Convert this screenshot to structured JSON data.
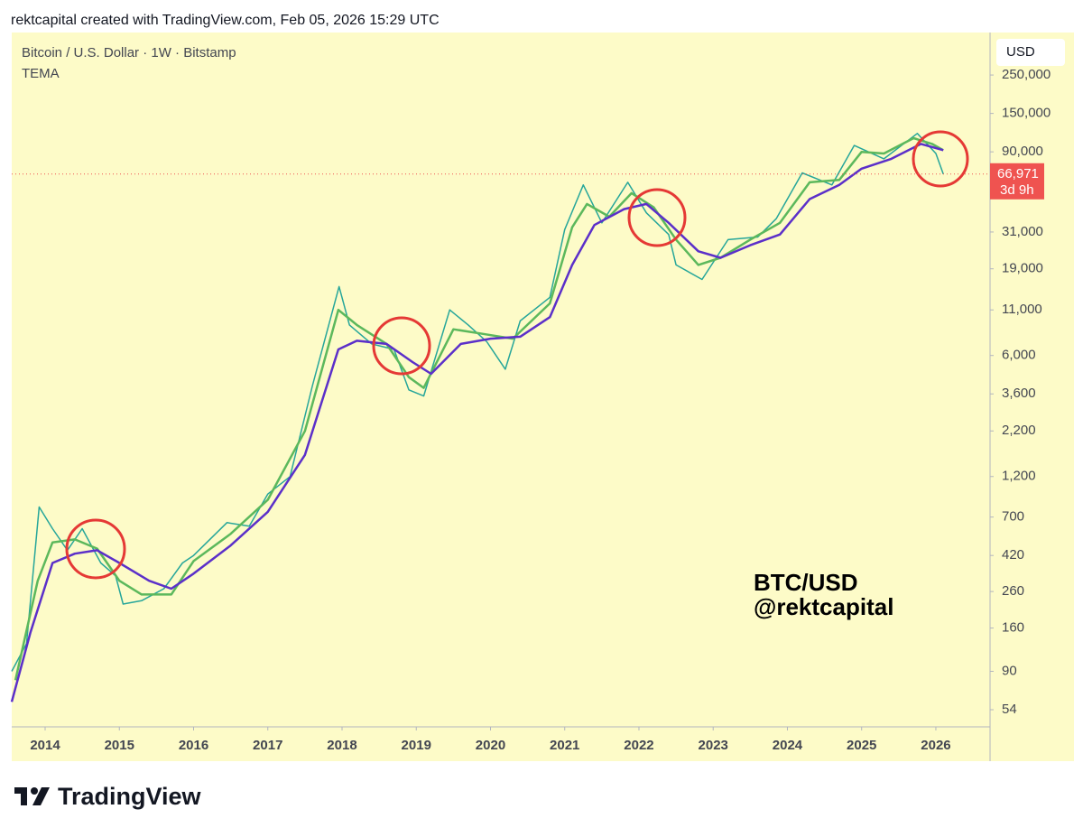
{
  "header": "rektcapital created with TradingView.com, Feb 05, 2026 15:29 UTC",
  "footer_logo": "TradingView",
  "chart_data": {
    "type": "line",
    "title": "Bitcoin / U.S. Dollar · 1W · Bitstamp",
    "indicator": "TEMA",
    "currency": "USD",
    "watermark": [
      "BTC/USD",
      "@rektcapital"
    ],
    "log_scale": true,
    "xlim": [
      2013.55,
      2026.73
    ],
    "xticks": [
      2014,
      2015,
      2016,
      2017,
      2018,
      2019,
      2020,
      2021,
      2022,
      2023,
      2024,
      2025,
      2026
    ],
    "ylim": [
      43,
      440000
    ],
    "yticks": [
      54,
      90,
      160,
      260,
      420,
      700,
      {
        "value": 1200,
        "label": "1,200"
      },
      {
        "value": 2200,
        "label": "2,200"
      },
      {
        "value": 3600,
        "label": "3,600"
      },
      {
        "value": 6000,
        "label": "6,000"
      },
      {
        "value": 11000,
        "label": "11,000"
      },
      {
        "value": 19000,
        "label": "19,000"
      },
      {
        "value": 31000,
        "label": "31,000"
      },
      {
        "value": 90000,
        "label": "90,000"
      },
      {
        "value": 150000,
        "label": "150,000"
      },
      {
        "value": 250000,
        "label": "250,000"
      }
    ],
    "last_price": {
      "value": 66971,
      "label": "66,971"
    },
    "countdown": "3d 9h",
    "series": [
      {
        "color": "#26a69a",
        "x": [
          2013.55,
          2013.75,
          2013.92,
          2014.1,
          2014.3,
          2014.5,
          2014.75,
          2014.95,
          2015.05,
          2015.3,
          2015.6,
          2015.85,
          2016.0,
          2016.45,
          2016.75,
          2017.0,
          2017.3,
          2017.6,
          2017.96,
          2018.1,
          2018.4,
          2018.7,
          2018.9,
          2019.1,
          2019.45,
          2019.7,
          2019.95,
          2020.2,
          2020.4,
          2020.8,
          2021.0,
          2021.25,
          2021.5,
          2021.85,
          2022.1,
          2022.4,
          2022.5,
          2022.85,
          2023.2,
          2023.6,
          2023.85,
          2024.2,
          2024.6,
          2024.9,
          2025.3,
          2025.75,
          2026.0,
          2026.1
        ],
        "values": [
          90,
          130,
          800,
          600,
          450,
          600,
          380,
          320,
          220,
          230,
          270,
          380,
          420,
          650,
          620,
          950,
          1200,
          4000,
          15000,
          9000,
          7000,
          6500,
          3800,
          3500,
          11000,
          9000,
          7200,
          5000,
          9500,
          13000,
          32000,
          58000,
          35000,
          60000,
          40000,
          30000,
          20000,
          16500,
          28000,
          29000,
          37000,
          68000,
          58000,
          98000,
          82000,
          115000,
          88000,
          66971
        ]
      },
      {
        "color": "#5cb85c",
        "x": [
          2013.6,
          2013.9,
          2014.1,
          2014.4,
          2014.7,
          2015.0,
          2015.3,
          2015.7,
          2016.0,
          2016.5,
          2017.0,
          2017.5,
          2017.95,
          2018.2,
          2018.6,
          2018.9,
          2019.1,
          2019.5,
          2019.9,
          2020.3,
          2020.8,
          2021.1,
          2021.3,
          2021.6,
          2021.9,
          2022.2,
          2022.5,
          2022.8,
          2023.1,
          2023.5,
          2023.9,
          2024.3,
          2024.7,
          2025.0,
          2025.3,
          2025.7,
          2025.95,
          2026.1
        ],
        "values": [
          80,
          300,
          500,
          520,
          460,
          300,
          250,
          250,
          390,
          560,
          880,
          2200,
          11000,
          9000,
          7000,
          4500,
          3900,
          8500,
          8000,
          7500,
          12000,
          33000,
          45000,
          38000,
          52000,
          43000,
          28000,
          20000,
          22000,
          28000,
          35000,
          60000,
          62000,
          90000,
          88000,
          108000,
          100000,
          92000
        ]
      },
      {
        "color": "#5b2fc9",
        "x": [
          2013.55,
          2013.8,
          2014.1,
          2014.4,
          2014.7,
          2015.0,
          2015.4,
          2015.7,
          2016.0,
          2016.5,
          2017.0,
          2017.5,
          2017.95,
          2018.2,
          2018.6,
          2018.95,
          2019.2,
          2019.6,
          2020.0,
          2020.4,
          2020.8,
          2021.1,
          2021.4,
          2021.8,
          2022.1,
          2022.4,
          2022.8,
          2023.1,
          2023.5,
          2023.9,
          2024.3,
          2024.7,
          2025.0,
          2025.4,
          2025.8,
          2026.1
        ],
        "values": [
          60,
          150,
          380,
          430,
          450,
          380,
          300,
          270,
          330,
          480,
          750,
          1600,
          6500,
          7300,
          7000,
          5500,
          4700,
          7000,
          7500,
          7700,
          10000,
          20000,
          34000,
          42000,
          45000,
          35000,
          24000,
          22000,
          26000,
          30000,
          48000,
          58000,
          72000,
          82000,
          100000,
          92000
        ]
      }
    ]
  }
}
